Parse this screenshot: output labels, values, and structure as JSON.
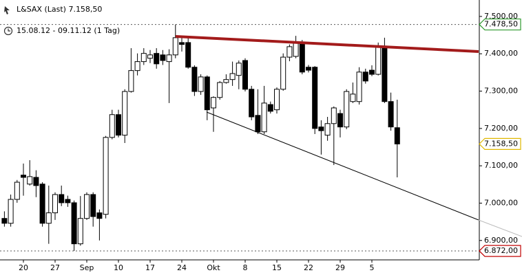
{
  "chart_data": {
    "type": "candlestick",
    "title": "L&SAX (Last) 7.158,50",
    "subtitle": "15.08.12 - 09.11.12 (1 Tag)",
    "categories": [
      null,
      null,
      null,
      "20",
      null,
      null,
      null,
      null,
      "27",
      null,
      null,
      null,
      null,
      "Sep",
      null,
      null,
      null,
      null,
      "10",
      null,
      null,
      null,
      null,
      "17",
      null,
      null,
      null,
      null,
      "24",
      null,
      null,
      null,
      null,
      "Okt",
      null,
      null,
      null,
      null,
      "8",
      null,
      null,
      null,
      null,
      "15",
      null,
      null,
      null,
      null,
      "22",
      null,
      null,
      null,
      null,
      "29",
      null,
      null,
      null,
      null,
      "5",
      null,
      null,
      null,
      null
    ],
    "open": [
      6959,
      6946,
      7010,
      7075,
      7051,
      7069,
      7051,
      6946,
      6974,
      7023,
      7010,
      7001,
      6891,
      6959,
      7023,
      6974,
      6970,
      7176,
      7237,
      7182,
      7299,
      7355,
      7379,
      7388,
      7401,
      7397,
      7379,
      7397,
      7430,
      7430,
      7364,
      7299,
      7338,
      7255,
      7283,
      7323,
      7331,
      7342,
      7382,
      7305,
      7235,
      7191,
      7264,
      7250,
      7305,
      7391,
      7393,
      7430,
      7364,
      7364,
      7204,
      7182,
      7213,
      7240,
      7204,
      7272,
      7272,
      7351,
      7356,
      7345,
      7419,
      7272,
      7202
    ],
    "high": [
      6978,
      7023,
      7062,
      7106,
      7115,
      7088,
      7056,
      7047,
      7029,
      7047,
      7020,
      7007,
      7019,
      7029,
      7029,
      6983,
      7180,
      7250,
      7250,
      7305,
      7415,
      7401,
      7415,
      7410,
      7415,
      7410,
      7412,
      7478.5,
      7443,
      7443,
      7369,
      7345,
      7342,
      7286,
      7327,
      7345,
      7379,
      7382,
      7388,
      7314,
      7305,
      7314,
      7272,
      7310,
      7401,
      7425,
      7448,
      7437,
      7370,
      7367,
      7222,
      7231,
      7259,
      7250,
      7305,
      7323,
      7364,
      7360,
      7369,
      7430,
      7443,
      7296,
      7277
    ],
    "low": [
      6937,
      6937,
      7001,
      7020,
      7047,
      7016,
      6937,
      6891,
      6955,
      6992,
      6990,
      6872,
      6886,
      6955,
      6937,
      6900,
      6959,
      7171,
      7176,
      7161,
      7296,
      7342,
      7370,
      7375,
      7360,
      7370,
      7268,
      7388,
      7406,
      7360,
      7287,
      7290,
      7222,
      7191,
      7277,
      7320,
      7314,
      7305,
      7299,
      7222,
      7185,
      7185,
      7240,
      7240,
      7301,
      7380,
      7388,
      7345,
      7350,
      7185,
      7130,
      7167,
      7102,
      7176,
      7198,
      7268,
      7264,
      7320,
      7340,
      7342,
      7268,
      7194,
      7069
    ],
    "close": [
      6946,
      7010,
      7056,
      7069,
      7071,
      7047,
      6946,
      6974,
      7023,
      7001,
      7001,
      6891,
      6959,
      7023,
      6964,
      6959,
      7176,
      7237,
      7182,
      7299,
      7355,
      7379,
      7401,
      7397,
      7373,
      7382,
      7397,
      7443,
      7425,
      7364,
      7299,
      7338,
      7250,
      7283,
      7323,
      7331,
      7347,
      7375,
      7305,
      7231,
      7191,
      7268,
      7246,
      7305,
      7391,
      7419,
      7430,
      7351,
      7356,
      7200,
      7194,
      7213,
      7255,
      7204,
      7299,
      7292,
      7351,
      7327,
      7345,
      7419,
      7272,
      7204,
      7158.5
    ],
    "up_color": "#ffffff",
    "down_color": "#000000",
    "ylim": [
      6848,
      7544
    ],
    "yticks": [
      {
        "value": 6900,
        "label": "6.900,00"
      },
      {
        "value": 7000,
        "label": "7.000,00"
      },
      {
        "value": 7100,
        "label": "7.100,00"
      },
      {
        "value": 7200,
        "label": "7.200,00"
      },
      {
        "value": 7300,
        "label": "7.300,00"
      },
      {
        "value": 7400,
        "label": "7.400,00"
      },
      {
        "value": 7500,
        "label": "7.500,00"
      }
    ],
    "price_tags": [
      {
        "value": 7478.5,
        "label": "7.478,50",
        "color": "#2e9a2e",
        "dotted": true
      },
      {
        "value": 7158.5,
        "label": "7.158,50",
        "color": "#e0b800",
        "dotted": false
      },
      {
        "value": 6872,
        "label": "6.872,00",
        "color": "#c00000",
        "dotted": true
      }
    ]
  }
}
